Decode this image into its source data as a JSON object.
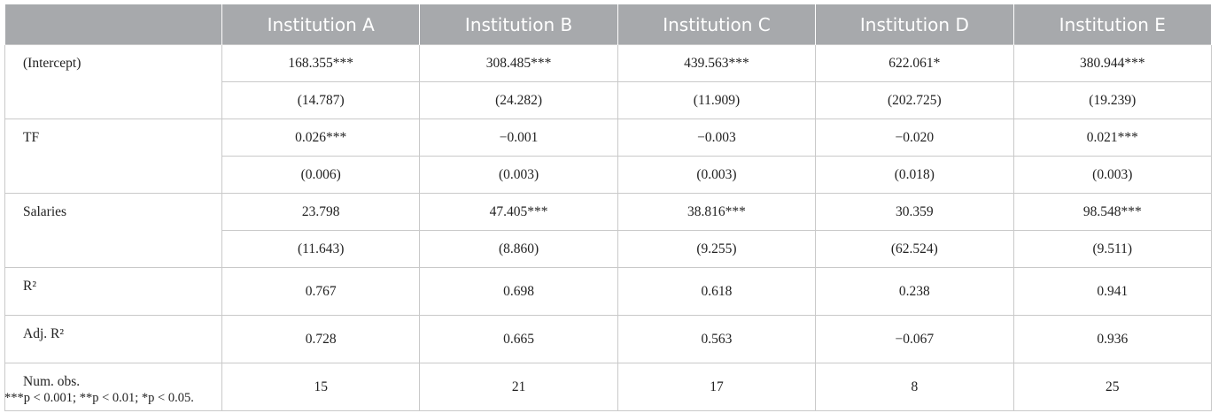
{
  "table": {
    "columns": [
      "Institution A",
      "Institution B",
      "Institution C",
      "Institution D",
      "Institution E"
    ],
    "rows": [
      {
        "label": "(Intercept)",
        "values": [
          "168.355***",
          "308.485***",
          "439.563***",
          "622.061*",
          "380.944***"
        ],
        "errors": [
          "(14.787)",
          "(24.282)",
          "(11.909)",
          "(202.725)",
          "(19.239)"
        ]
      },
      {
        "label": "TF",
        "values": [
          "0.026***",
          "−0.001",
          "−0.003",
          "−0.020",
          "0.021***"
        ],
        "errors": [
          "(0.006)",
          "(0.003)",
          "(0.003)",
          "(0.018)",
          "(0.003)"
        ]
      },
      {
        "label": "Salaries",
        "values": [
          "23.798",
          "47.405***",
          "38.816***",
          "30.359",
          "98.548***"
        ],
        "errors": [
          "(11.643)",
          "(8.860)",
          "(9.255)",
          "(62.524)",
          "(9.511)"
        ]
      },
      {
        "label": "R²",
        "values": [
          "0.767",
          "0.698",
          "0.618",
          "0.238",
          "0.941"
        ]
      },
      {
        "label": "Adj. R²",
        "values": [
          "0.728",
          "0.665",
          "0.563",
          "−0.067",
          "0.936"
        ]
      },
      {
        "label": "Num. obs.",
        "values": [
          "15",
          "21",
          "17",
          "8",
          "25"
        ]
      }
    ],
    "footnote": "***p < 0.001; **p < 0.01; *p < 0.05."
  }
}
